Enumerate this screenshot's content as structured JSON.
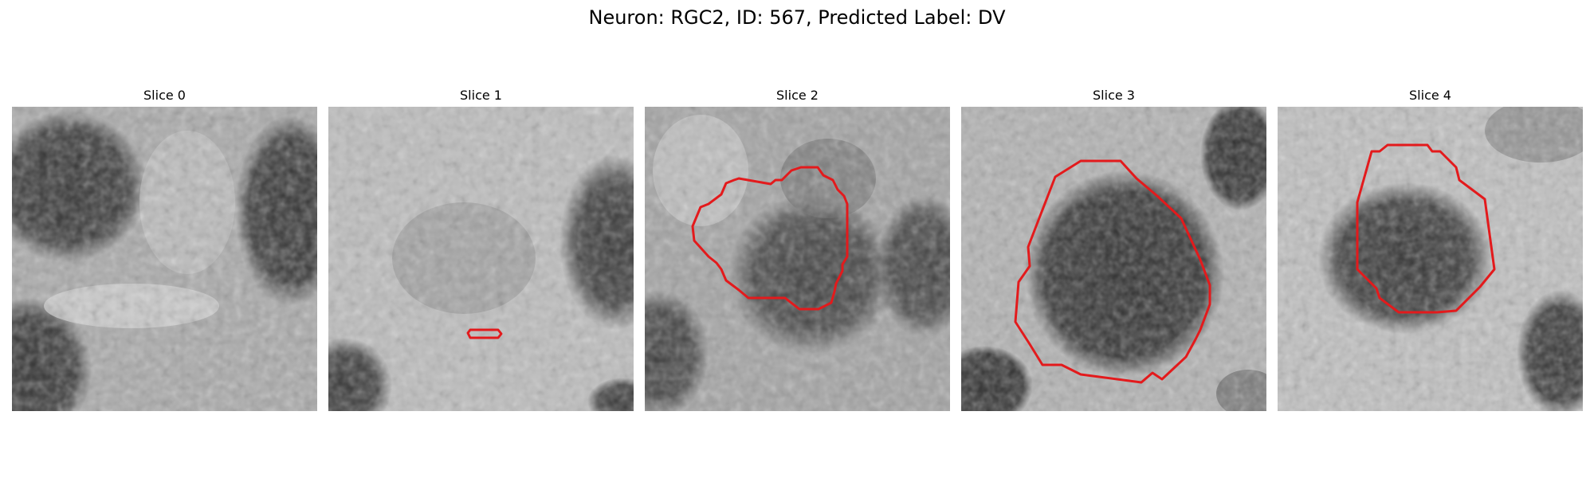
{
  "figure": {
    "title": "Neuron: RGC2, ID: 567, Predicted Label: DV",
    "contour_color": "#e31a1c",
    "panels": [
      {
        "title": "Slice 0"
      },
      {
        "title": "Slice 1"
      },
      {
        "title": "Slice 2"
      },
      {
        "title": "Slice 3"
      },
      {
        "title": "Slice 4"
      }
    ]
  }
}
